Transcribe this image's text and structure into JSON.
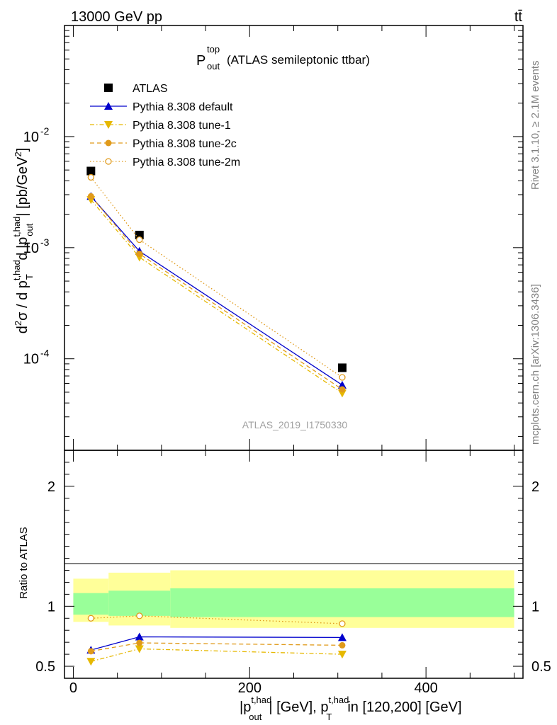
{
  "header": {
    "left": "13000 GeV pp",
    "right": "tt̄"
  },
  "side_labels": {
    "rivet": "Rivet 3.1.10, ≥ 2.1M events",
    "mcplots": "mcplots.cern.ch [arXiv:1306.3436]"
  },
  "watermark": "ATLAS_2019_I1750330",
  "colors": {
    "atlas": "#000000",
    "default": "#0000cc",
    "tune1": "#e6b800",
    "tune2c": "#e09a1a",
    "tune2m": "#e09a1a",
    "band_inner": "#99ff99",
    "band_outer": "#ffff99",
    "side_text": "#808080"
  },
  "chart_data": [
    {
      "type": "line",
      "title": "P_out^top (ATLAS semileptonic ttbar)",
      "ylabel": "d²σ / d p_T^{t,had} d |p_out^{t,had}| [pb/GeV²]",
      "yscale": "log",
      "ylim": [
        1.5e-05,
        0.1
      ],
      "xlim": [
        -10,
        510
      ],
      "y_ticks": [
        {
          "value": 0.0001,
          "label": "10",
          "exp": "-4"
        },
        {
          "value": 0.001,
          "label": "10",
          "exp": "-3"
        },
        {
          "value": 0.01,
          "label": "10",
          "exp": "-2"
        }
      ],
      "legend_position": "top-left",
      "x": [
        20,
        75,
        305
      ],
      "series": [
        {
          "name": "ATLAS",
          "marker": "square",
          "values": [
            0.0049,
            0.0013,
            8.3e-05
          ]
        },
        {
          "name": "Pythia 8.308 default",
          "marker": "triangle-up",
          "line": "solid",
          "values": [
            0.0029,
            0.00093,
            5.8e-05
          ]
        },
        {
          "name": "Pythia 8.308 tune-1",
          "marker": "triangle-down",
          "line": "dashdot",
          "values": [
            0.0027,
            0.00082,
            4.9e-05
          ]
        },
        {
          "name": "Pythia 8.308 tune-2c",
          "marker": "circle",
          "line": "dashed",
          "values": [
            0.0029,
            0.00088,
            5.3e-05
          ]
        },
        {
          "name": "Pythia 8.308 tune-2m",
          "marker": "circle-open",
          "line": "dotted",
          "values": [
            0.0043,
            0.00118,
            6.8e-05
          ]
        }
      ]
    },
    {
      "type": "line",
      "ylabel": "Ratio to ATLAS",
      "xlabel": "|p_out^{t,had}| [GeV], p_T^{t,had} in [120,200] [GeV]",
      "ylim": [
        0.4,
        2.3
      ],
      "xlim": [
        -10,
        510
      ],
      "y_ticks": [
        {
          "value": 0.5,
          "label": "0.5"
        },
        {
          "value": 1,
          "label": "1"
        },
        {
          "value": 2,
          "label": "2"
        }
      ],
      "x_ticks": [
        {
          "value": 0,
          "label": "0"
        },
        {
          "value": 200,
          "label": "200"
        },
        {
          "value": 400,
          "label": "400"
        }
      ],
      "bands": {
        "bin_edges": [
          0,
          40,
          110,
          500
        ],
        "outer_low": [
          0.87,
          0.84,
          0.82
        ],
        "outer_high": [
          1.23,
          1.28,
          1.3
        ],
        "inner_low": [
          0.93,
          0.92,
          0.91
        ],
        "inner_high": [
          1.11,
          1.13,
          1.15
        ]
      },
      "x": [
        20,
        75,
        305
      ],
      "series": [
        {
          "name": "Pythia 8.308 default",
          "values": [
            0.635,
            0.745,
            0.74
          ]
        },
        {
          "name": "Pythia 8.308 tune-1",
          "values": [
            0.54,
            0.645,
            0.6
          ]
        },
        {
          "name": "Pythia 8.308 tune-2c",
          "values": [
            0.625,
            0.695,
            0.675
          ]
        },
        {
          "name": "Pythia 8.308 tune-2m",
          "values": [
            0.9,
            0.92,
            0.855
          ]
        }
      ]
    }
  ]
}
